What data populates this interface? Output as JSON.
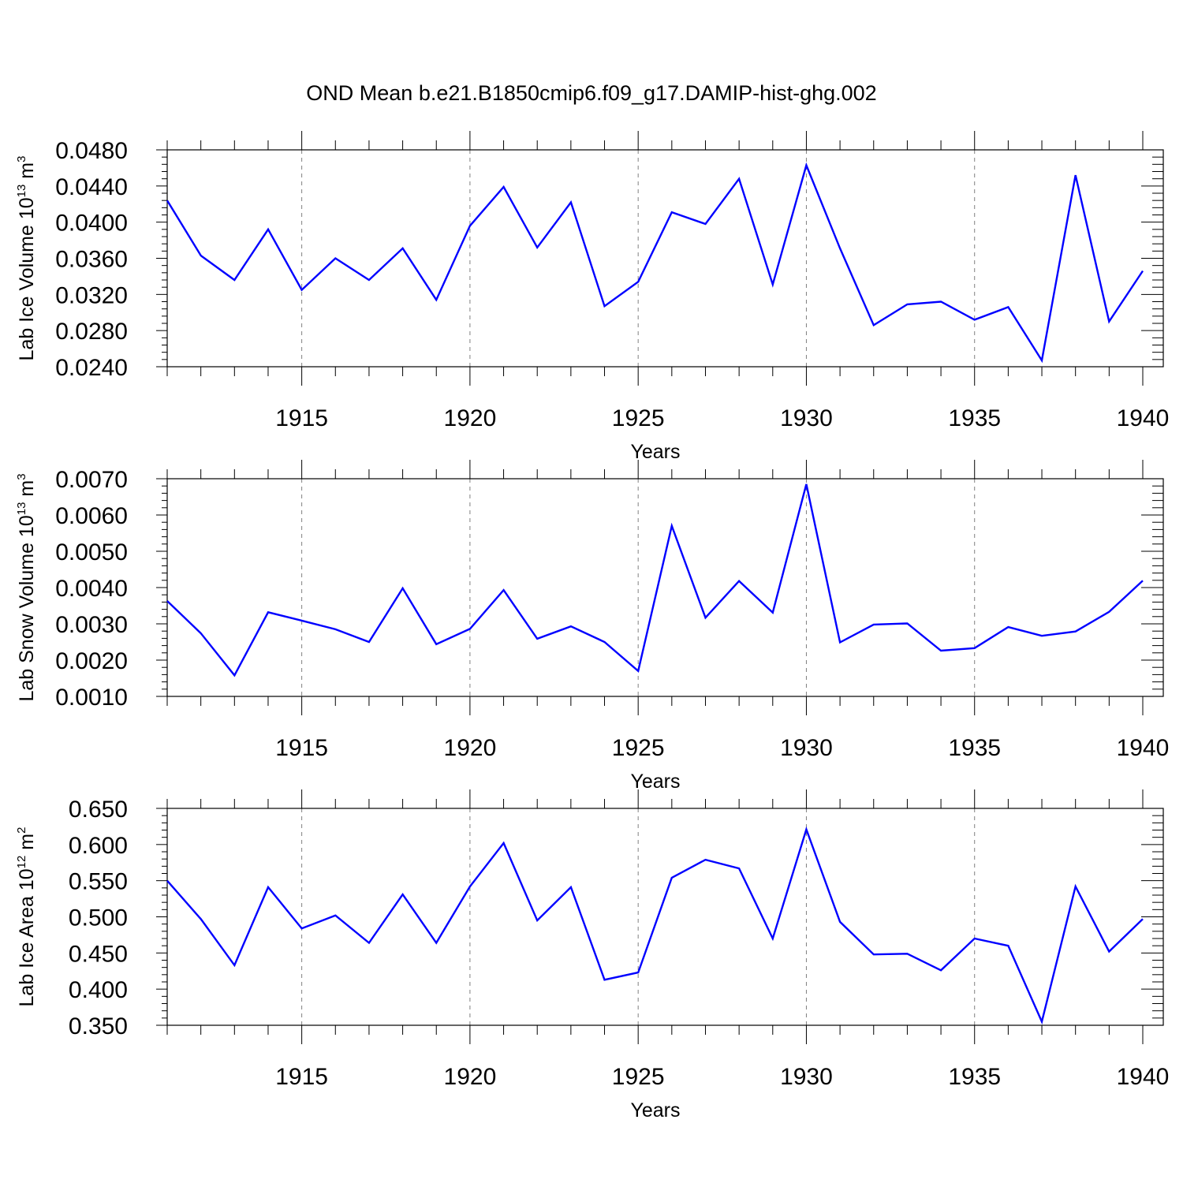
{
  "title": "OND Mean b.e21.B1850cmip6.f09_g17.DAMIP-hist-ghg.002",
  "colors": {
    "line": "#0000ff",
    "axis": "#000000",
    "grid": "#808080"
  },
  "chart_data": [
    {
      "type": "line",
      "xlabel": "Years",
      "ylabel": {
        "text": "Lab Ice Volume 10",
        "exp": "13",
        "unit": "m",
        "unit_exp": "3"
      },
      "xlim": [
        1911,
        1940
      ],
      "ylim": [
        0.024,
        0.048
      ],
      "xticks": [
        1915,
        1920,
        1925,
        1930,
        1935,
        1940
      ],
      "yticks": [
        "0.0240",
        "0.0280",
        "0.0320",
        "0.0360",
        "0.0400",
        "0.0440",
        "0.0480"
      ],
      "grid": "dashed vertical at major x ticks",
      "x": [
        1911,
        1912,
        1913,
        1914,
        1915,
        1916,
        1917,
        1918,
        1919,
        1920,
        1921,
        1922,
        1923,
        1924,
        1925,
        1926,
        1927,
        1928,
        1929,
        1930,
        1931,
        1932,
        1933,
        1934,
        1935,
        1936,
        1937,
        1938,
        1939,
        1940
      ],
      "series": [
        {
          "values": [
            0.0424,
            0.0363,
            0.0336,
            0.0392,
            0.0325,
            0.036,
            0.0336,
            0.0371,
            0.0314,
            0.0396,
            0.0439,
            0.0372,
            0.0422,
            0.0307,
            0.0334,
            0.0411,
            0.0398,
            0.0448,
            0.0331,
            0.0463,
            0.0371,
            0.0286,
            0.0309,
            0.0312,
            0.0292,
            0.0306,
            0.0247,
            0.0452,
            0.029,
            0.0346
          ]
        }
      ]
    },
    {
      "type": "line",
      "xlabel": "Years",
      "ylabel": {
        "text": "Lab Snow Volume 10",
        "exp": "13",
        "unit": "m",
        "unit_exp": "3"
      },
      "xlim": [
        1911,
        1940
      ],
      "ylim": [
        0.001,
        0.007
      ],
      "xticks": [
        1915,
        1920,
        1925,
        1930,
        1935,
        1940
      ],
      "yticks": [
        "0.0010",
        "0.0020",
        "0.0030",
        "0.0040",
        "0.0050",
        "0.0060",
        "0.0070"
      ],
      "grid": "dashed vertical at major x ticks",
      "x": [
        1911,
        1912,
        1913,
        1914,
        1915,
        1916,
        1917,
        1918,
        1919,
        1920,
        1921,
        1922,
        1923,
        1924,
        1925,
        1926,
        1927,
        1928,
        1929,
        1930,
        1931,
        1932,
        1933,
        1934,
        1935,
        1936,
        1937,
        1938,
        1939,
        1940
      ],
      "series": [
        {
          "values": [
            0.00363,
            0.00274,
            0.00158,
            0.00332,
            0.00309,
            0.00285,
            0.0025,
            0.00398,
            0.00244,
            0.00286,
            0.00393,
            0.00259,
            0.00293,
            0.0025,
            0.0017,
            0.0057,
            0.00317,
            0.00418,
            0.00331,
            0.00685,
            0.00249,
            0.00298,
            0.00301,
            0.00226,
            0.00233,
            0.00291,
            0.00267,
            0.00279,
            0.00333,
            0.00419
          ]
        }
      ]
    },
    {
      "type": "line",
      "xlabel": "Years",
      "ylabel": {
        "text": "Lab Ice Area 10",
        "exp": "12",
        "unit": "m",
        "unit_exp": "2"
      },
      "xlim": [
        1911,
        1940
      ],
      "ylim": [
        0.35,
        0.65
      ],
      "xticks": [
        1915,
        1920,
        1925,
        1930,
        1935,
        1940
      ],
      "yticks": [
        "0.350",
        "0.400",
        "0.450",
        "0.500",
        "0.550",
        "0.600",
        "0.650"
      ],
      "grid": "dashed vertical at major x ticks",
      "x": [
        1911,
        1912,
        1913,
        1914,
        1915,
        1916,
        1917,
        1918,
        1919,
        1920,
        1921,
        1922,
        1923,
        1924,
        1925,
        1926,
        1927,
        1928,
        1929,
        1930,
        1931,
        1932,
        1933,
        1934,
        1935,
        1936,
        1937,
        1938,
        1939,
        1940
      ],
      "series": [
        {
          "values": [
            0.55,
            0.497,
            0.433,
            0.541,
            0.484,
            0.502,
            0.464,
            0.531,
            0.464,
            0.542,
            0.602,
            0.495,
            0.541,
            0.413,
            0.423,
            0.554,
            0.579,
            0.567,
            0.47,
            0.621,
            0.493,
            0.448,
            0.449,
            0.426,
            0.47,
            0.46,
            0.355,
            0.542,
            0.452,
            0.497
          ]
        }
      ]
    }
  ]
}
